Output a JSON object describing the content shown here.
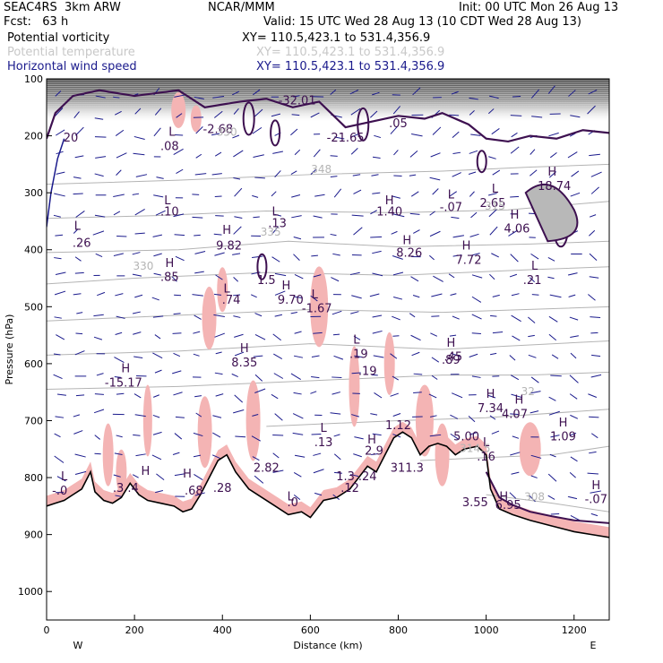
{
  "header": {
    "line1_left": "SEAC4RS  3km ARW",
    "line1_center": "NCAR/MMM",
    "line1_right": "Init: 00 UTC Mon 26 Aug 13",
    "line2_left": "Fcst:   63 h",
    "line2_right": "Valid: 15 UTC Wed 28 Aug 13 (10 CDT Wed 28 Aug 13)",
    "fields": [
      {
        "name": "Potential vorticity",
        "xy": "XY= 110.5,423.1 to 531.4,356.9"
      },
      {
        "name": "Potential temperature",
        "xy": "XY= 110.5,423.1 to 531.4,356.9"
      },
      {
        "name": "Horizontal wind speed",
        "xy": "XY= 110.5,423.1 to 531.4,356.9"
      }
    ]
  },
  "chart_data": {
    "type": "cross-section",
    "xlabel": "Distance (km)",
    "ylabel": "Pressure (hPa)",
    "xlim": [
      0,
      1280
    ],
    "ylim": [
      1050,
      100
    ],
    "x_ticks": [
      0,
      200,
      400,
      600,
      800,
      1000,
      1200
    ],
    "y_ticks": [
      100,
      200,
      300,
      400,
      500,
      600,
      700,
      800,
      900,
      1000
    ],
    "x_end_labels": {
      "left": "W",
      "right": "E"
    },
    "colors": {
      "pv": "#3d1050",
      "theta": "#b4b4b4",
      "wind": "#1a1a8c",
      "pink": "#f4b4b4",
      "terrain": "#000000"
    },
    "theta_labels": [
      {
        "x": 410,
        "p": 200,
        "text": "350"
      },
      {
        "x": 510,
        "p": 375,
        "text": "335"
      },
      {
        "x": 220,
        "p": 435,
        "text": "330"
      },
      {
        "x": 975,
        "p": 755,
        "text": "314.5"
      },
      {
        "x": 1110,
        "p": 840,
        "text": "308"
      },
      {
        "x": 1095,
        "p": 655,
        "text": "32"
      },
      {
        "x": 1020,
        "p": 330,
        "text": "315"
      },
      {
        "x": 625,
        "p": 265,
        "text": "348"
      }
    ],
    "extrema": [
      {
        "x": 55,
        "p": 210,
        "text": "20",
        "type": "value"
      },
      {
        "x": 70,
        "p": 365,
        "text": "L",
        "type": "marker"
      },
      {
        "x": 80,
        "p": 395,
        "text": ".26",
        "type": "value"
      },
      {
        "x": 285,
        "p": 200,
        "text": "L",
        "type": "marker"
      },
      {
        "x": 280,
        "p": 225,
        "text": ".08",
        "type": "value"
      },
      {
        "x": 390,
        "p": 195,
        "text": "-2.68",
        "type": "value"
      },
      {
        "x": 275,
        "p": 320,
        "text": "L",
        "type": "marker"
      },
      {
        "x": 280,
        "p": 340,
        "text": ".10",
        "type": "value"
      },
      {
        "x": 410,
        "p": 372,
        "text": "H",
        "type": "marker"
      },
      {
        "x": 415,
        "p": 400,
        "text": "9.82",
        "type": "value"
      },
      {
        "x": 520,
        "p": 340,
        "text": "L",
        "type": "marker"
      },
      {
        "x": 525,
        "p": 360,
        "text": ".13",
        "type": "value"
      },
      {
        "x": 280,
        "p": 430,
        "text": "H",
        "type": "marker"
      },
      {
        "x": 280,
        "p": 455,
        "text": ".85",
        "type": "value"
      },
      {
        "x": 500,
        "p": 460,
        "text": "1.5",
        "type": "value"
      },
      {
        "x": 545,
        "p": 470,
        "text": "H",
        "type": "marker"
      },
      {
        "x": 555,
        "p": 495,
        "text": "9.70",
        "type": "value"
      },
      {
        "x": 410,
        "p": 475,
        "text": "L",
        "type": "marker"
      },
      {
        "x": 420,
        "p": 495,
        "text": ".74",
        "type": "value"
      },
      {
        "x": 610,
        "p": 485,
        "text": "L",
        "type": "marker"
      },
      {
        "x": 615,
        "p": 510,
        "text": "-1.67",
        "type": "value"
      },
      {
        "x": 450,
        "p": 580,
        "text": "H",
        "type": "marker"
      },
      {
        "x": 450,
        "p": 605,
        "text": "8.35",
        "type": "value"
      },
      {
        "x": 180,
        "p": 615,
        "text": "H",
        "type": "marker"
      },
      {
        "x": 175,
        "p": 640,
        "text": "-15.17",
        "type": "value"
      },
      {
        "x": 705,
        "p": 565,
        "text": "L",
        "type": "marker"
      },
      {
        "x": 710,
        "p": 590,
        "text": ".19",
        "type": "value"
      },
      {
        "x": 730,
        "p": 620,
        "text": ".19",
        "type": "value"
      },
      {
        "x": 780,
        "p": 320,
        "text": "H",
        "type": "marker"
      },
      {
        "x": 780,
        "p": 340,
        "text": "1.40",
        "type": "value"
      },
      {
        "x": 820,
        "p": 390,
        "text": "H",
        "type": "marker"
      },
      {
        "x": 825,
        "p": 412,
        "text": "8.26",
        "type": "value"
      },
      {
        "x": 920,
        "p": 310,
        "text": "L",
        "type": "marker"
      },
      {
        "x": 920,
        "p": 332,
        "text": "-.07",
        "type": "value"
      },
      {
        "x": 955,
        "p": 400,
        "text": "H",
        "type": "marker"
      },
      {
        "x": 960,
        "p": 425,
        "text": "7.72",
        "type": "value"
      },
      {
        "x": 1020,
        "p": 300,
        "text": "L",
        "type": "marker"
      },
      {
        "x": 1015,
        "p": 325,
        "text": "2.65",
        "type": "value"
      },
      {
        "x": 1065,
        "p": 345,
        "text": "H",
        "type": "marker"
      },
      {
        "x": 1070,
        "p": 370,
        "text": "4.06",
        "type": "value"
      },
      {
        "x": 1150,
        "p": 270,
        "text": "H",
        "type": "marker"
      },
      {
        "x": 1155,
        "p": 295,
        "text": "18.74",
        "type": "value"
      },
      {
        "x": 1110,
        "p": 435,
        "text": "L",
        "type": "marker"
      },
      {
        "x": 1105,
        "p": 460,
        "text": ".21",
        "type": "value"
      },
      {
        "x": 920,
        "p": 570,
        "text": "H",
        "type": "marker"
      },
      {
        "x": 925,
        "p": 595,
        "text": ".45",
        "type": "value"
      },
      {
        "x": 920,
        "p": 600,
        "text": ".89",
        "type": "value"
      },
      {
        "x": 1010,
        "p": 660,
        "text": "H",
        "type": "marker"
      },
      {
        "x": 1010,
        "p": 685,
        "text": "7.34",
        "type": "value"
      },
      {
        "x": 1075,
        "p": 670,
        "text": "H",
        "type": "marker"
      },
      {
        "x": 1065,
        "p": 695,
        "text": "4.07",
        "type": "value"
      },
      {
        "x": 1175,
        "p": 710,
        "text": "H",
        "type": "marker"
      },
      {
        "x": 1175,
        "p": 735,
        "text": "1.09",
        "type": "value"
      },
      {
        "x": 1000,
        "p": 745,
        "text": "L",
        "type": "marker"
      },
      {
        "x": 1000,
        "p": 770,
        "text": ".16",
        "type": "value"
      },
      {
        "x": 955,
        "p": 735,
        "text": "5.00",
        "type": "value"
      },
      {
        "x": 975,
        "p": 850,
        "text": "3.55",
        "type": "value"
      },
      {
        "x": 1040,
        "p": 840,
        "text": "H",
        "type": "marker"
      },
      {
        "x": 1050,
        "p": 855,
        "text": "6.95",
        "type": "value"
      },
      {
        "x": 1250,
        "p": 820,
        "text": "H",
        "type": "marker"
      },
      {
        "x": 1250,
        "p": 845,
        "text": "-.07",
        "type": "value"
      },
      {
        "x": 630,
        "p": 720,
        "text": "L",
        "type": "marker"
      },
      {
        "x": 630,
        "p": 745,
        "text": ".13",
        "type": "value"
      },
      {
        "x": 740,
        "p": 740,
        "text": "H",
        "type": "marker"
      },
      {
        "x": 745,
        "p": 760,
        "text": "2.9",
        "type": "value"
      },
      {
        "x": 800,
        "p": 715,
        "text": "1.12",
        "type": "value"
      },
      {
        "x": 680,
        "p": 805,
        "text": "1.3",
        "type": "value"
      },
      {
        "x": 730,
        "p": 805,
        "text": ".24",
        "type": "value"
      },
      {
        "x": 690,
        "p": 825,
        "text": ".12",
        "type": "value"
      },
      {
        "x": 500,
        "p": 790,
        "text": "2.82",
        "type": "value"
      },
      {
        "x": 320,
        "p": 800,
        "text": "H",
        "type": "marker"
      },
      {
        "x": 335,
        "p": 830,
        "text": ".68",
        "type": "value"
      },
      {
        "x": 400,
        "p": 825,
        "text": ".28",
        "type": "value"
      },
      {
        "x": 225,
        "p": 795,
        "text": "H",
        "type": "marker"
      },
      {
        "x": 180,
        "p": 825,
        "text": ".3 .4",
        "type": "value"
      },
      {
        "x": 40,
        "p": 805,
        "text": "L",
        "type": "marker"
      },
      {
        "x": 30,
        "p": 830,
        "text": "-.0",
        "type": "value"
      },
      {
        "x": 555,
        "p": 840,
        "text": "L",
        "type": "marker"
      },
      {
        "x": 560,
        "p": 850,
        "text": ".0",
        "type": "value"
      },
      {
        "x": 820,
        "p": 790,
        "text": "311.3",
        "type": "value"
      },
      {
        "x": 570,
        "p": 145,
        "text": "-32.01",
        "type": "value"
      },
      {
        "x": 680,
        "p": 210,
        "text": "-21.65",
        "type": "value"
      },
      {
        "x": 800,
        "p": 185,
        "text": ".05",
        "type": "value"
      }
    ]
  }
}
